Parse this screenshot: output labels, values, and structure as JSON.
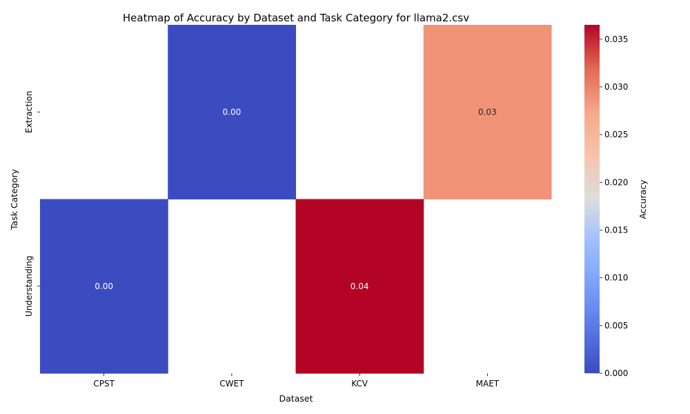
{
  "chart_data": {
    "type": "heatmap",
    "title": "Heatmap of Accuracy by Dataset and Task Category for llama2.csv",
    "xlabel": "Dataset",
    "ylabel": "Task Category",
    "x_categories": [
      "CPST",
      "CWET",
      "KCV",
      "MAET"
    ],
    "y_categories": [
      "Extraction",
      "Understanding"
    ],
    "values": [
      [
        null,
        0.0,
        null,
        0.0289
      ],
      [
        0.0,
        null,
        0.0365,
        null
      ]
    ],
    "value_labels": [
      [
        null,
        "0.00",
        null,
        "0.03"
      ],
      [
        "0.00",
        null,
        "0.04",
        null
      ]
    ],
    "colormap": "coolwarm",
    "colorbar": {
      "label": "Accuracy",
      "range": [
        0.0,
        0.0365
      ],
      "ticks": [
        0.0,
        0.005,
        0.01,
        0.015,
        0.02,
        0.025,
        0.03,
        0.035
      ],
      "tick_labels": [
        "0.000",
        "0.005",
        "0.010",
        "0.015",
        "0.020",
        "0.025",
        "0.030",
        "0.035"
      ]
    },
    "colors": {
      "low": "#3b4cc0",
      "mid": "#dddddd",
      "high": "#b40426"
    }
  }
}
